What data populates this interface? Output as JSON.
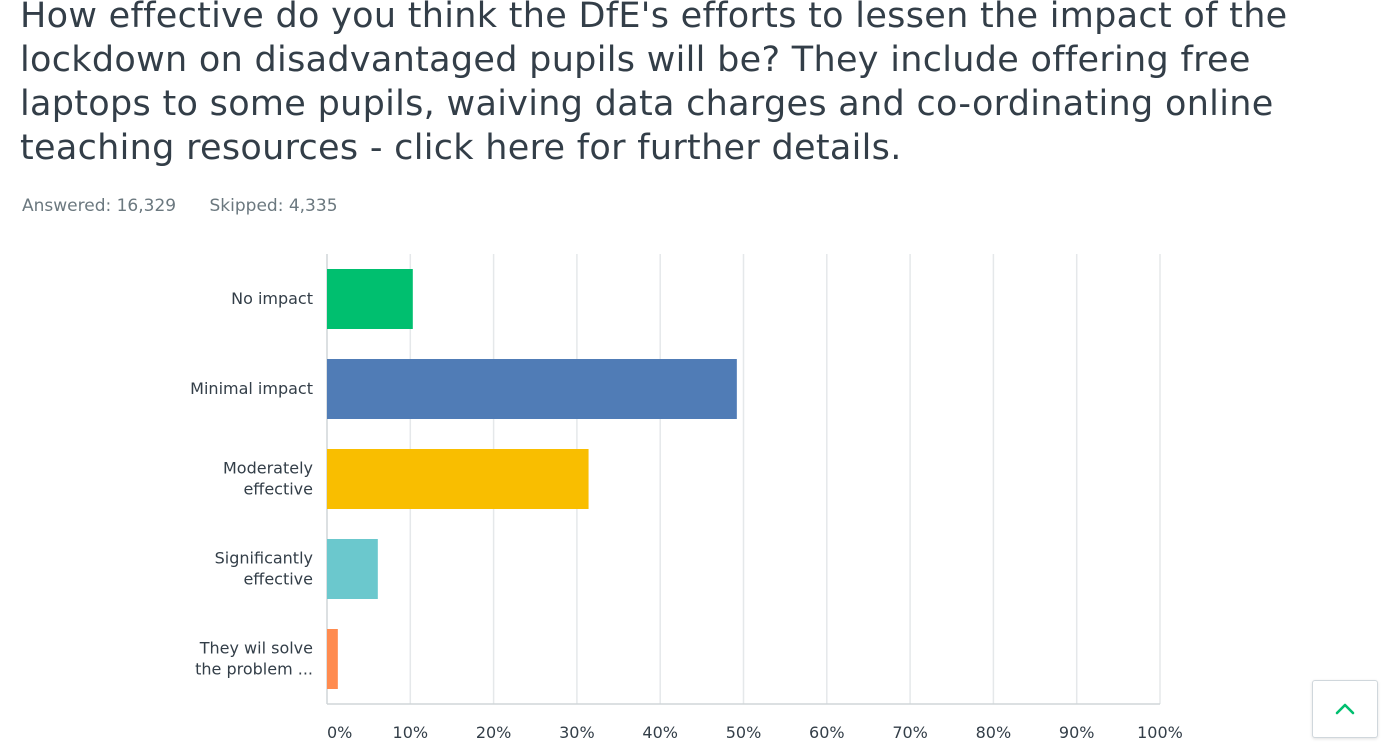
{
  "question": {
    "title": "How effective do you think the DfE's efforts to lessen the impact of the lockdown on disadvantaged pupils will be? They include offering free laptops to some pupils, waiving data charges and co-ordinating online teaching resources - click here for further details."
  },
  "stats": {
    "answered": "Answered: 16,329",
    "skipped": "Skipped: 4,335"
  },
  "chart_data": {
    "type": "bar",
    "orientation": "horizontal",
    "categories": [
      [
        "No impact"
      ],
      [
        "Minimal impact"
      ],
      [
        "Moderately",
        "effective"
      ],
      [
        "Significantly",
        "effective"
      ],
      [
        "They wil solve",
        "the problem ..."
      ]
    ],
    "values": [
      10.3,
      49.2,
      31.4,
      6.1,
      1.3
    ],
    "colors": [
      "#00bf6f",
      "#507cb6",
      "#f9be00",
      "#6bc8cd",
      "#ff8b4f"
    ],
    "xlim": [
      0,
      100
    ],
    "tick_values": [
      0,
      10,
      20,
      30,
      40,
      50,
      60,
      70,
      80,
      90,
      100
    ],
    "tick_labels": [
      "0%",
      "10%",
      "20%",
      "30%",
      "40%",
      "50%",
      "60%",
      "70%",
      "80%",
      "90%",
      "100%"
    ],
    "grid": true
  },
  "controls": {
    "scroll_top_icon": "chevron-up-icon"
  }
}
